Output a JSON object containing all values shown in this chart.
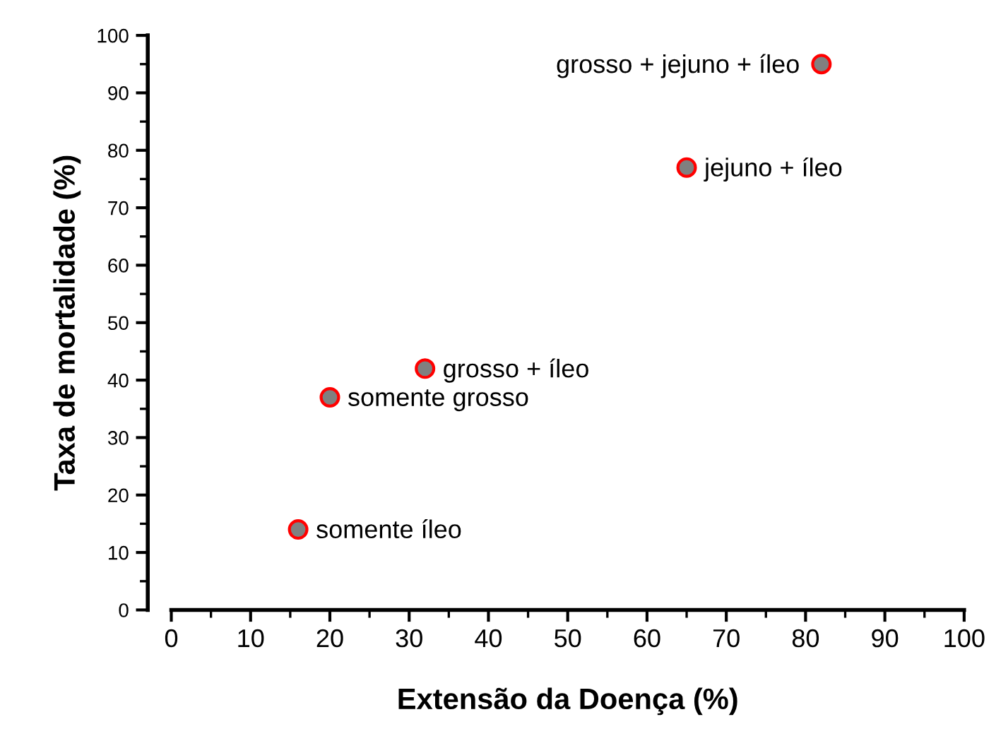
{
  "chart_data": {
    "type": "scatter",
    "xlabel": "Extensão da Doença (%)",
    "ylabel": "Taxa de mortalidade (%)",
    "x": [
      16,
      20,
      32,
      65,
      82
    ],
    "series": [
      {
        "color": "#808080",
        "values": [
          14,
          37,
          42,
          77,
          95
        ]
      }
    ],
    "annotations": [
      {
        "text": "somente íleo",
        "x": 16,
        "y": 14
      },
      {
        "text": "somente grosso",
        "x": 20,
        "y": 37
      },
      {
        "text": "grosso + íleo",
        "x": 32,
        "y": 42
      },
      {
        "text": "jejuno + íleo",
        "x": 65,
        "y": 77
      },
      {
        "text": "grosso + jejuno + íleo",
        "x": 82,
        "y": 95
      }
    ],
    "xlim": [
      0,
      100
    ],
    "xticks": [
      0,
      10,
      20,
      30,
      40,
      50,
      60,
      70,
      80,
      90,
      100
    ],
    "ylim": [
      0,
      100
    ],
    "yticks": [
      0,
      10,
      20,
      30,
      40,
      50,
      60,
      70,
      80,
      90,
      100
    ],
    "marker": "circle",
    "grid": false,
    "legend": false
  }
}
